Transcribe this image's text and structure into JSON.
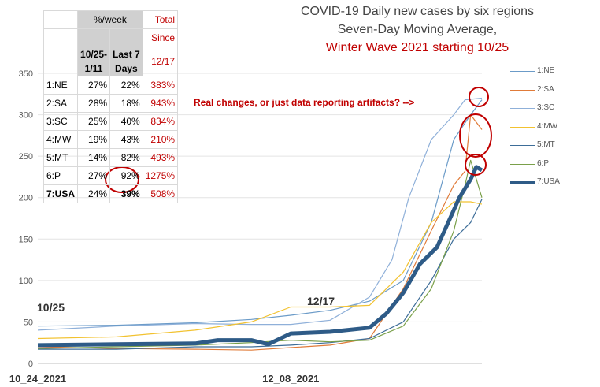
{
  "title_lines": [
    "COVID-19 Daily new cases by six regions",
    "Seven-Day Moving Average,",
    "Winter Wave 2021 starting 10/25"
  ],
  "annotation": "Real changes, or just data reporting artifacts? -->",
  "date_labels": [
    "10/25",
    "12/17"
  ],
  "table": {
    "header_pct": "%/week",
    "header_total": "Total",
    "header_since": "Since",
    "col1": [
      "10/25-",
      "1/11"
    ],
    "col2": [
      "Last 7",
      "Days"
    ],
    "col3": "12/17",
    "rows": [
      {
        "region": "1:NE",
        "a": "27%",
        "b": "22%",
        "c": "383%"
      },
      {
        "region": "2:SA",
        "a": "28%",
        "b": "18%",
        "c": "943%"
      },
      {
        "region": "3:SC",
        "a": "25%",
        "b": "40%",
        "c": "834%"
      },
      {
        "region": "4:MW",
        "a": "19%",
        "b": "43%",
        "c": "210%"
      },
      {
        "region": "5:MT",
        "a": "14%",
        "b": "82%",
        "c": "493%"
      },
      {
        "region": "6:P",
        "a": "27%",
        "b": "92%",
        "c": "1275%"
      },
      {
        "region": "7:USA",
        "a": "24%",
        "b": "39%",
        "c": "508%"
      }
    ]
  },
  "colors": {
    "NE": "#6b9bc8",
    "SA": "#e07b39",
    "SC": "#8fb0d9",
    "MW": "#f2c230",
    "MT": "#3d6d98",
    "P": "#7aa04a",
    "USA": "#2e5b87",
    "red": "#c00000"
  },
  "chart_data": {
    "type": "line",
    "title": "COVID-19 Daily new cases by six regions",
    "subtitle": "Seven-Day Moving Average, Winter Wave 2021 starting 10/25",
    "ylim": [
      0,
      350
    ],
    "yticks": [
      0,
      50,
      100,
      150,
      200,
      250,
      300,
      350
    ],
    "x_start": "2021-10-24",
    "x_end": "2022-01-11",
    "xtick_labels": [
      {
        "date": "2021-10-24",
        "label": "10_24_2021"
      },
      {
        "date": "2021-12-08",
        "label": "12_08_2021"
      }
    ],
    "legend_position": "right",
    "series": [
      {
        "name": "1:NE",
        "color": "#6b9bc8",
        "points": [
          [
            "2021-10-24",
            45
          ],
          [
            "2021-11-07",
            46
          ],
          [
            "2021-11-21",
            49
          ],
          [
            "2021-12-01",
            53
          ],
          [
            "2021-12-08",
            58
          ],
          [
            "2021-12-15",
            64
          ],
          [
            "2021-12-22",
            75
          ],
          [
            "2021-12-28",
            100
          ],
          [
            "2022-01-02",
            170
          ],
          [
            "2022-01-06",
            270
          ],
          [
            "2022-01-09",
            300
          ],
          [
            "2022-01-11",
            318
          ]
        ]
      },
      {
        "name": "2:SA",
        "color": "#e07b39",
        "points": [
          [
            "2021-10-24",
            20
          ],
          [
            "2021-11-07",
            18
          ],
          [
            "2021-11-21",
            17
          ],
          [
            "2021-12-01",
            16
          ],
          [
            "2021-12-08",
            19
          ],
          [
            "2021-12-15",
            22
          ],
          [
            "2021-12-22",
            30
          ],
          [
            "2021-12-28",
            90
          ],
          [
            "2022-01-02",
            160
          ],
          [
            "2022-01-06",
            215
          ],
          [
            "2022-01-08",
            232
          ],
          [
            "2022-01-09",
            300
          ],
          [
            "2022-01-11",
            282
          ]
        ]
      },
      {
        "name": "3:SC",
        "color": "#8fb0d9",
        "points": [
          [
            "2021-10-24",
            40
          ],
          [
            "2021-11-07",
            45
          ],
          [
            "2021-11-21",
            48
          ],
          [
            "2021-12-01",
            47
          ],
          [
            "2021-12-08",
            47
          ],
          [
            "2021-12-15",
            52
          ],
          [
            "2021-12-22",
            80
          ],
          [
            "2021-12-26",
            125
          ],
          [
            "2021-12-29",
            200
          ],
          [
            "2022-01-02",
            270
          ],
          [
            "2022-01-06",
            300
          ],
          [
            "2022-01-08",
            318
          ],
          [
            "2022-01-11",
            320
          ]
        ]
      },
      {
        "name": "4:MW",
        "color": "#f2c230",
        "points": [
          [
            "2021-10-24",
            30
          ],
          [
            "2021-11-07",
            32
          ],
          [
            "2021-11-21",
            40
          ],
          [
            "2021-12-01",
            50
          ],
          [
            "2021-12-08",
            68
          ],
          [
            "2021-12-15",
            68
          ],
          [
            "2021-12-22",
            70
          ],
          [
            "2021-12-28",
            110
          ],
          [
            "2022-01-02",
            170
          ],
          [
            "2022-01-06",
            195
          ],
          [
            "2022-01-09",
            195
          ],
          [
            "2022-01-11",
            192
          ]
        ]
      },
      {
        "name": "5:MT",
        "color": "#3d6d98",
        "points": [
          [
            "2021-10-24",
            17
          ],
          [
            "2021-11-07",
            17
          ],
          [
            "2021-11-21",
            20
          ],
          [
            "2021-12-01",
            20
          ],
          [
            "2021-12-08",
            22
          ],
          [
            "2021-12-15",
            25
          ],
          [
            "2021-12-22",
            30
          ],
          [
            "2021-12-28",
            50
          ],
          [
            "2022-01-02",
            100
          ],
          [
            "2022-01-06",
            150
          ],
          [
            "2022-01-09",
            170
          ],
          [
            "2022-01-11",
            198
          ]
        ]
      },
      {
        "name": "6:P",
        "color": "#7aa04a",
        "points": [
          [
            "2021-10-24",
            18
          ],
          [
            "2021-11-07",
            20
          ],
          [
            "2021-11-21",
            22
          ],
          [
            "2021-12-01",
            25
          ],
          [
            "2021-12-08",
            28
          ],
          [
            "2021-12-15",
            26
          ],
          [
            "2021-12-22",
            28
          ],
          [
            "2021-12-28",
            45
          ],
          [
            "2022-01-02",
            90
          ],
          [
            "2022-01-06",
            160
          ],
          [
            "2022-01-08",
            215
          ],
          [
            "2022-01-09",
            245
          ],
          [
            "2022-01-11",
            200
          ]
        ]
      },
      {
        "name": "7:USA",
        "color": "#2e5b87",
        "points": [
          [
            "2021-10-24",
            22
          ],
          [
            "2021-11-07",
            23
          ],
          [
            "2021-11-21",
            24
          ],
          [
            "2021-11-25",
            28
          ],
          [
            "2021-12-01",
            28
          ],
          [
            "2021-12-04",
            23
          ],
          [
            "2021-12-08",
            36
          ],
          [
            "2021-12-15",
            38
          ],
          [
            "2021-12-22",
            43
          ],
          [
            "2021-12-25",
            60
          ],
          [
            "2021-12-28",
            85
          ],
          [
            "2021-12-31",
            120
          ],
          [
            "2022-01-03",
            140
          ],
          [
            "2022-01-05",
            170
          ],
          [
            "2022-01-07",
            200
          ],
          [
            "2022-01-09",
            222
          ],
          [
            "2022-01-10",
            237
          ],
          [
            "2022-01-11",
            233
          ]
        ]
      }
    ]
  }
}
